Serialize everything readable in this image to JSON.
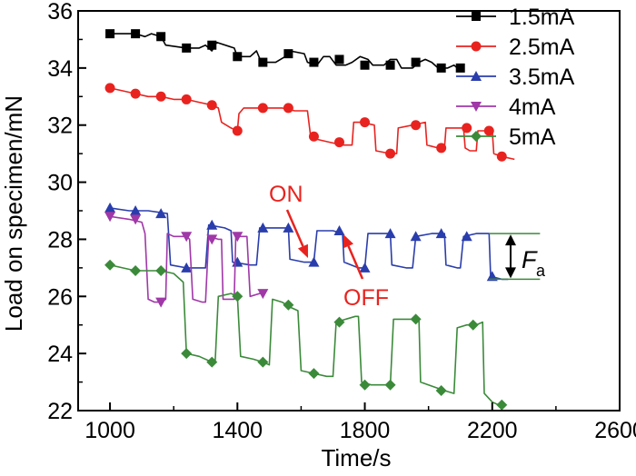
{
  "chart_data": {
    "type": "line",
    "xlabel": "Time/s",
    "ylabel": "Load on specimen/mN",
    "xlim": [
      900,
      2600
    ],
    "ylim": [
      22,
      36
    ],
    "xticks": [
      1000,
      1400,
      1800,
      2200,
      2600
    ],
    "yticks": [
      22,
      24,
      26,
      28,
      30,
      32,
      34,
      36
    ],
    "legend_position": "top-right",
    "series": [
      {
        "name": "1.5mA",
        "color": "#000000",
        "marker": "square",
        "points": [
          [
            1000,
            35.2
          ],
          [
            1040,
            35.2
          ],
          [
            1080,
            35.2
          ],
          [
            1110,
            35.1
          ],
          [
            1130,
            35.2
          ],
          [
            1160,
            35.1
          ],
          [
            1175,
            34.8
          ],
          [
            1240,
            34.7
          ],
          [
            1280,
            34.7
          ],
          [
            1300,
            34.8
          ],
          [
            1320,
            34.6
          ],
          [
            1335,
            34.9
          ],
          [
            1390,
            34.7
          ],
          [
            1400,
            34.4
          ],
          [
            1440,
            34.4
          ],
          [
            1460,
            34.6
          ],
          [
            1475,
            34.2
          ],
          [
            1520,
            34.2
          ],
          [
            1550,
            34.4
          ],
          [
            1565,
            34.6
          ],
          [
            1610,
            34.5
          ],
          [
            1620,
            34.2
          ],
          [
            1650,
            34.1
          ],
          [
            1670,
            34.4
          ],
          [
            1690,
            34.4
          ],
          [
            1710,
            34.1
          ],
          [
            1740,
            34.1
          ],
          [
            1760,
            34.2
          ],
          [
            1785,
            34.4
          ],
          [
            1810,
            34.3
          ],
          [
            1825,
            34.1
          ],
          [
            1860,
            34.1
          ],
          [
            1880,
            34.3
          ],
          [
            1900,
            34.3
          ],
          [
            1915,
            34.0
          ],
          [
            1950,
            34.0
          ],
          [
            1970,
            34.2
          ],
          [
            1990,
            34.3
          ],
          [
            2010,
            34.2
          ],
          [
            2030,
            34.0
          ],
          [
            2060,
            34.0
          ],
          [
            2080,
            34.1
          ],
          [
            2100,
            33.9
          ],
          [
            2110,
            34.0
          ]
        ],
        "markers": [
          [
            1000,
            35.2
          ],
          [
            1080,
            35.2
          ],
          [
            1160,
            35.1
          ],
          [
            1240,
            34.7
          ],
          [
            1320,
            34.8
          ],
          [
            1400,
            34.4
          ],
          [
            1480,
            34.2
          ],
          [
            1560,
            34.5
          ],
          [
            1640,
            34.2
          ],
          [
            1720,
            34.3
          ],
          [
            1800,
            34.1
          ],
          [
            1880,
            34.1
          ],
          [
            1960,
            34.2
          ],
          [
            2040,
            34.0
          ],
          [
            2100,
            34.0
          ]
        ]
      },
      {
        "name": "2.5mA",
        "color": "#e8231f",
        "marker": "circle",
        "points": [
          [
            1000,
            33.3
          ],
          [
            1040,
            33.2
          ],
          [
            1080,
            33.1
          ],
          [
            1120,
            33.0
          ],
          [
            1160,
            33.0
          ],
          [
            1200,
            32.9
          ],
          [
            1240,
            32.9
          ],
          [
            1280,
            32.8
          ],
          [
            1320,
            32.7
          ],
          [
            1340,
            32.6
          ],
          [
            1350,
            32.1
          ],
          [
            1380,
            31.9
          ],
          [
            1400,
            31.8
          ],
          [
            1405,
            32.4
          ],
          [
            1420,
            32.6
          ],
          [
            1460,
            32.6
          ],
          [
            1500,
            32.6
          ],
          [
            1540,
            32.6
          ],
          [
            1580,
            32.5
          ],
          [
            1620,
            32.5
          ],
          [
            1630,
            31.6
          ],
          [
            1650,
            31.5
          ],
          [
            1690,
            31.4
          ],
          [
            1730,
            31.3
          ],
          [
            1760,
            31.3
          ],
          [
            1765,
            32.1
          ],
          [
            1790,
            32.1
          ],
          [
            1830,
            32.0
          ],
          [
            1835,
            31.1
          ],
          [
            1880,
            31.0
          ],
          [
            1900,
            31.0
          ],
          [
            1905,
            31.9
          ],
          [
            1950,
            32.0
          ],
          [
            1990,
            32.1
          ],
          [
            1995,
            31.3
          ],
          [
            2030,
            31.2
          ],
          [
            2050,
            31.2
          ],
          [
            2055,
            31.9
          ],
          [
            2090,
            31.9
          ],
          [
            2110,
            31.9
          ],
          [
            2115,
            31.2
          ],
          [
            2130,
            31.1
          ],
          [
            2150,
            31.1
          ],
          [
            2155,
            31.8
          ],
          [
            2180,
            31.8
          ],
          [
            2200,
            31.8
          ],
          [
            2205,
            31.0
          ],
          [
            2230,
            30.9
          ],
          [
            2270,
            30.8
          ]
        ],
        "markers": [
          [
            1000,
            33.3
          ],
          [
            1080,
            33.1
          ],
          [
            1160,
            33.0
          ],
          [
            1240,
            32.9
          ],
          [
            1320,
            32.7
          ],
          [
            1400,
            31.8
          ],
          [
            1480,
            32.6
          ],
          [
            1560,
            32.6
          ],
          [
            1640,
            31.6
          ],
          [
            1720,
            31.4
          ],
          [
            1800,
            32.1
          ],
          [
            1880,
            31.0
          ],
          [
            1960,
            32.0
          ],
          [
            2040,
            31.2
          ],
          [
            2120,
            31.9
          ],
          [
            2190,
            31.8
          ],
          [
            2230,
            30.9
          ]
        ]
      },
      {
        "name": "3.5mA",
        "color": "#2a3dac",
        "marker": "triangle-up",
        "points": [
          [
            1000,
            29.1
          ],
          [
            1060,
            29.0
          ],
          [
            1120,
            29.0
          ],
          [
            1180,
            28.9
          ],
          [
            1190,
            27.1
          ],
          [
            1240,
            27.0
          ],
          [
            1300,
            27.0
          ],
          [
            1310,
            28.5
          ],
          [
            1360,
            28.4
          ],
          [
            1380,
            28.3
          ],
          [
            1385,
            27.2
          ],
          [
            1440,
            27.1
          ],
          [
            1460,
            27.1
          ],
          [
            1470,
            28.4
          ],
          [
            1520,
            28.4
          ],
          [
            1560,
            28.4
          ],
          [
            1565,
            27.3
          ],
          [
            1610,
            27.2
          ],
          [
            1640,
            27.2
          ],
          [
            1650,
            28.3
          ],
          [
            1700,
            28.3
          ],
          [
            1730,
            28.2
          ],
          [
            1735,
            27.2
          ],
          [
            1780,
            27.0
          ],
          [
            1800,
            27.0
          ],
          [
            1810,
            28.2
          ],
          [
            1850,
            28.2
          ],
          [
            1880,
            28.2
          ],
          [
            1885,
            27.1
          ],
          [
            1930,
            27.0
          ],
          [
            1950,
            27.0
          ],
          [
            1960,
            28.1
          ],
          [
            2010,
            28.2
          ],
          [
            2050,
            28.2
          ],
          [
            2055,
            27.1
          ],
          [
            2090,
            27.0
          ],
          [
            2100,
            27.0
          ],
          [
            2110,
            28.1
          ],
          [
            2150,
            28.2
          ],
          [
            2190,
            28.2
          ],
          [
            2195,
            26.7
          ],
          [
            2230,
            26.6
          ],
          [
            2250,
            26.6
          ]
        ],
        "markers": [
          [
            1000,
            29.1
          ],
          [
            1080,
            29.0
          ],
          [
            1160,
            28.9
          ],
          [
            1240,
            27.0
          ],
          [
            1320,
            28.5
          ],
          [
            1400,
            27.2
          ],
          [
            1480,
            28.4
          ],
          [
            1560,
            28.4
          ],
          [
            1640,
            27.2
          ],
          [
            1720,
            28.3
          ],
          [
            1800,
            27.0
          ],
          [
            1880,
            28.2
          ],
          [
            1960,
            28.1
          ],
          [
            2040,
            28.2
          ],
          [
            2120,
            28.1
          ],
          [
            2200,
            26.7
          ]
        ]
      },
      {
        "name": "4mA",
        "color": "#a038a8",
        "marker": "triangle-down",
        "points": [
          [
            1000,
            28.8
          ],
          [
            1060,
            28.7
          ],
          [
            1100,
            28.6
          ],
          [
            1110,
            28.2
          ],
          [
            1120,
            25.9
          ],
          [
            1140,
            25.8
          ],
          [
            1160,
            25.8
          ],
          [
            1175,
            25.9
          ],
          [
            1180,
            28.2
          ],
          [
            1200,
            28.1
          ],
          [
            1240,
            28.1
          ],
          [
            1250,
            28.0
          ],
          [
            1260,
            25.9
          ],
          [
            1290,
            25.8
          ],
          [
            1300,
            25.8
          ],
          [
            1310,
            28.1
          ],
          [
            1340,
            28.0
          ],
          [
            1350,
            28.0
          ],
          [
            1355,
            25.9
          ],
          [
            1380,
            25.9
          ],
          [
            1390,
            25.9
          ],
          [
            1395,
            28.1
          ],
          [
            1420,
            28.1
          ],
          [
            1430,
            28.1
          ],
          [
            1440,
            26.0
          ],
          [
            1470,
            26.1
          ],
          [
            1480,
            26.1
          ]
        ],
        "markers": [
          [
            1000,
            28.8
          ],
          [
            1080,
            28.7
          ],
          [
            1160,
            25.8
          ],
          [
            1240,
            28.1
          ],
          [
            1320,
            28.0
          ],
          [
            1400,
            28.1
          ],
          [
            1480,
            26.1
          ]
        ]
      },
      {
        "name": "5mA",
        "color": "#3b8a3a",
        "marker": "diamond",
        "points": [
          [
            1000,
            27.1
          ],
          [
            1040,
            27.0
          ],
          [
            1080,
            26.9
          ],
          [
            1120,
            26.9
          ],
          [
            1160,
            26.9
          ],
          [
            1200,
            26.8
          ],
          [
            1230,
            26.5
          ],
          [
            1240,
            24.0
          ],
          [
            1280,
            23.9
          ],
          [
            1320,
            23.7
          ],
          [
            1330,
            23.7
          ],
          [
            1340,
            26.0
          ],
          [
            1380,
            26.1
          ],
          [
            1400,
            26.0
          ],
          [
            1410,
            23.9
          ],
          [
            1450,
            23.8
          ],
          [
            1480,
            23.7
          ],
          [
            1500,
            23.6
          ],
          [
            1510,
            25.9
          ],
          [
            1540,
            25.8
          ],
          [
            1570,
            25.6
          ],
          [
            1590,
            25.5
          ],
          [
            1600,
            23.4
          ],
          [
            1640,
            23.3
          ],
          [
            1680,
            23.2
          ],
          [
            1700,
            23.2
          ],
          [
            1710,
            25.1
          ],
          [
            1740,
            25.2
          ],
          [
            1770,
            25.3
          ],
          [
            1780,
            25.3
          ],
          [
            1790,
            23.0
          ],
          [
            1820,
            22.9
          ],
          [
            1860,
            22.9
          ],
          [
            1880,
            22.9
          ],
          [
            1890,
            25.2
          ],
          [
            1920,
            25.2
          ],
          [
            1950,
            25.2
          ],
          [
            1970,
            25.2
          ],
          [
            1975,
            23.0
          ],
          [
            2000,
            22.9
          ],
          [
            2050,
            22.7
          ],
          [
            2080,
            22.6
          ],
          [
            2090,
            24.9
          ],
          [
            2120,
            25.0
          ],
          [
            2150,
            25.0
          ],
          [
            2170,
            25.1
          ],
          [
            2175,
            22.6
          ],
          [
            2200,
            22.3
          ],
          [
            2220,
            22.2
          ],
          [
            2240,
            22.2
          ]
        ],
        "markers": [
          [
            1000,
            27.1
          ],
          [
            1080,
            26.9
          ],
          [
            1160,
            26.9
          ],
          [
            1240,
            24.0
          ],
          [
            1320,
            23.7
          ],
          [
            1400,
            26.0
          ],
          [
            1480,
            23.7
          ],
          [
            1560,
            25.7
          ],
          [
            1640,
            23.3
          ],
          [
            1720,
            25.1
          ],
          [
            1800,
            22.9
          ],
          [
            1880,
            22.9
          ],
          [
            1960,
            25.2
          ],
          [
            2040,
            22.7
          ],
          [
            2140,
            25.0
          ],
          [
            2230,
            22.2
          ]
        ]
      }
    ],
    "annotations": {
      "on_label": "ON",
      "off_label": "OFF",
      "fa_label": "F",
      "fa_subscript": "a",
      "fa_high": 28.2,
      "fa_low": 26.6,
      "fa_x_start": 2190,
      "fa_x_end": 2350
    }
  },
  "colors": {
    "annotation_red": "#e8231f",
    "fa_line_green": "#3b8a3a",
    "axis": "#000000"
  }
}
